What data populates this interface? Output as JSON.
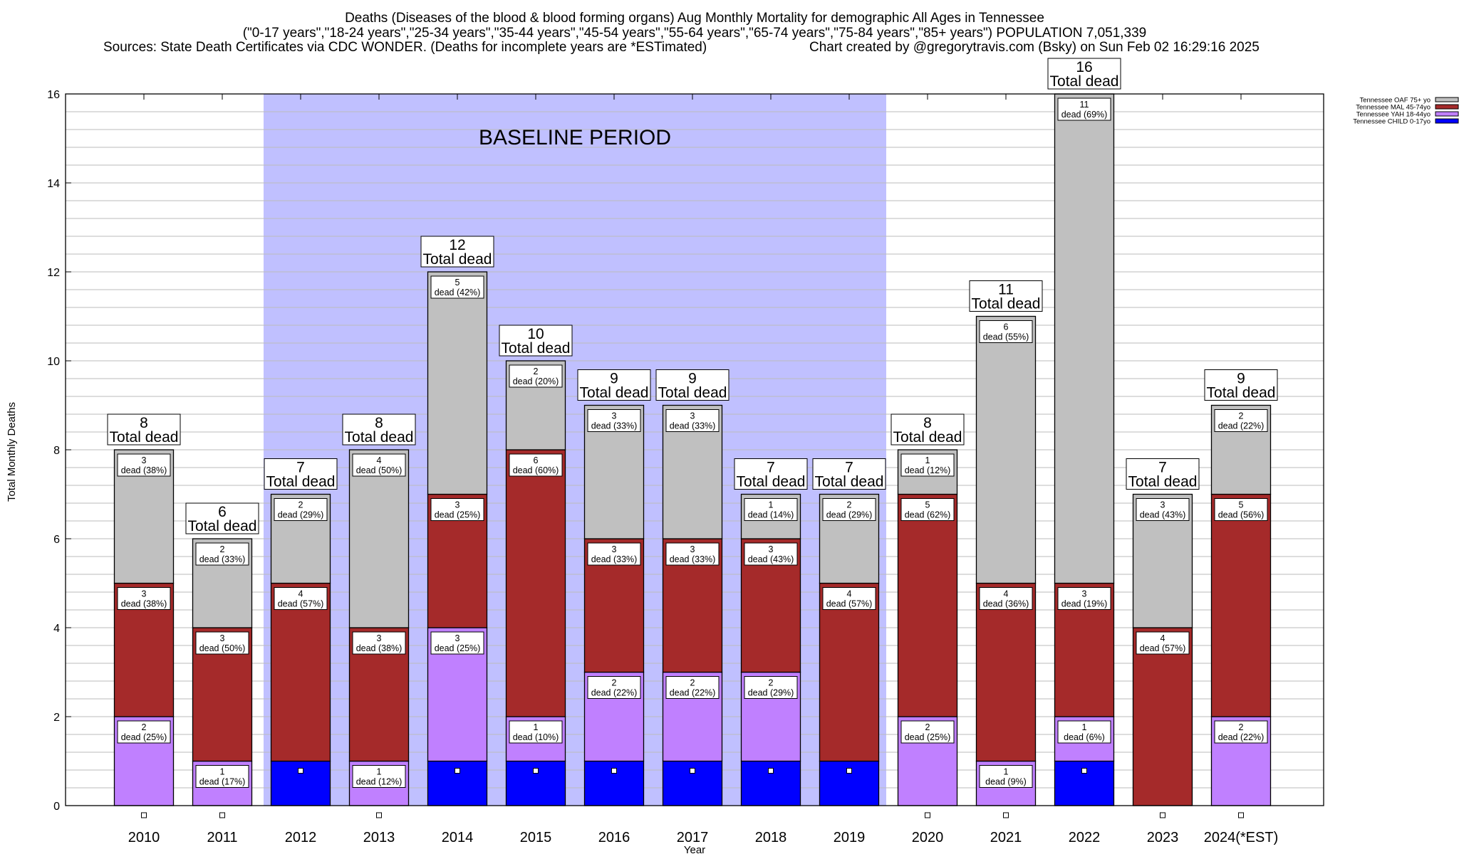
{
  "chart_data": {
    "type": "bar",
    "stacked": true,
    "title": [
      "Deaths (Diseases of the blood & blood forming organs) Aug Monthly Mortality for demographic All Ages in Tennessee",
      "(\"0-17 years\",\"18-24 years\",\"25-34 years\",\"35-44 years\",\"45-54 years\",\"55-64 years\",\"65-74 years\",\"75-84 years\",\"85+ years\") POPULATION 7,051,339"
    ],
    "sources": "Sources: State Death Certificates via CDC WONDER. (Deaths for incomplete years are *ESTimated)",
    "credit": "Chart created by @gregorytravis.com (Bsky) on Sun Feb 02 16:29:16 2025",
    "xlabel": "Year",
    "ylabel": "Total Monthly Deaths",
    "ylim": [
      0,
      16
    ],
    "yticks": [
      0,
      2,
      4,
      6,
      8,
      10,
      12,
      14,
      16
    ],
    "grid": true,
    "legend_position": "top-right",
    "annotation": "BASELINE PERIOD",
    "baseline_range": [
      "2012",
      "2019"
    ],
    "total_suffix": "Total dead",
    "seg_word": "dead",
    "categories": [
      "2010",
      "2011",
      "2012",
      "2013",
      "2014",
      "2015",
      "2016",
      "2017",
      "2018",
      "2019",
      "2020",
      "2021",
      "2022",
      "2023",
      "2024(*EST)"
    ],
    "series": [
      {
        "name": "Tennessee CHILD 0-17yo",
        "color": "#0000ff",
        "values": [
          0,
          0,
          1,
          0,
          1,
          1,
          1,
          1,
          1,
          1,
          0,
          0,
          1,
          0,
          0
        ]
      },
      {
        "name": "Tennessee YAH 18-44yo",
        "color": "#c080ff",
        "values": [
          2,
          1,
          0,
          1,
          3,
          1,
          2,
          2,
          2,
          0,
          2,
          1,
          1,
          0,
          2
        ]
      },
      {
        "name": "Tennessee MAL 45-74yo",
        "color": "#a52a2a",
        "values": [
          3,
          3,
          4,
          3,
          3,
          6,
          3,
          3,
          3,
          4,
          5,
          4,
          3,
          4,
          5
        ]
      },
      {
        "name": "Tennessee OAF 75+ yo",
        "color": "#c0c0c0",
        "values": [
          3,
          2,
          2,
          4,
          5,
          2,
          3,
          3,
          1,
          2,
          1,
          6,
          11,
          3,
          2
        ]
      }
    ],
    "percents": {
      "Tennessee YAH 18-44yo": [
        "25%",
        "17%",
        "",
        "12%",
        "25%",
        "10%",
        "22%",
        "22%",
        "29%",
        "",
        "25%",
        "9%",
        "6%",
        "",
        "22%"
      ],
      "Tennessee MAL 45-74yo": [
        "38%",
        "50%",
        "57%",
        "38%",
        "25%",
        "60%",
        "33%",
        "33%",
        "43%",
        "57%",
        "62%",
        "36%",
        "19%",
        "57%",
        "56%"
      ],
      "Tennessee OAF 75+ yo": [
        "38%",
        "33%",
        "29%",
        "50%",
        "42%",
        "20%",
        "33%",
        "33%",
        "14%",
        "29%",
        "12%",
        "55%",
        "69%",
        "43%",
        "22%"
      ]
    },
    "totals": [
      8,
      6,
      7,
      8,
      12,
      10,
      9,
      9,
      7,
      7,
      8,
      11,
      16,
      7,
      9
    ],
    "baseline_color": "#c0c0ff"
  }
}
